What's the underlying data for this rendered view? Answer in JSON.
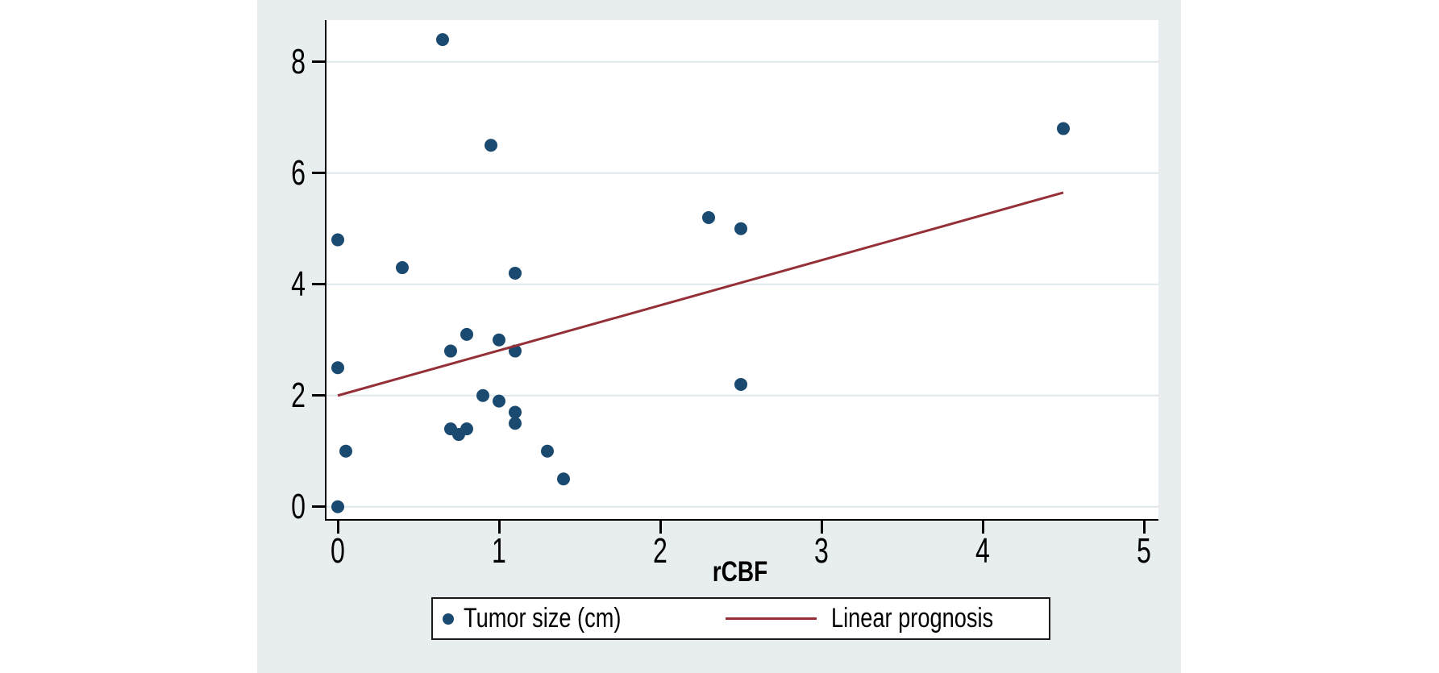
{
  "figure": {
    "background": "#e8eef0",
    "plot_background": "#ffffff",
    "grid_color": "#dfe9ec",
    "axis_color": "#000000",
    "legend_border_color": "#1a1a1a"
  },
  "legend": {
    "position": "bottom",
    "items": [
      {
        "label": "Tumor size (cm)",
        "marker": "dot",
        "color": "#1b4a71"
      },
      {
        "label": "Linear prognosis",
        "marker": "line",
        "color": "#953038"
      }
    ]
  },
  "chart_data": {
    "type": "scatter",
    "title": "",
    "xlabel": "rCBF",
    "ylabel": "",
    "xlim": [
      -0.08,
      5.09
    ],
    "ylim": [
      -0.25,
      8.75
    ],
    "x_ticks": [
      0,
      1,
      2,
      3,
      4,
      5
    ],
    "x_tick_labels": [
      "0",
      "1",
      "2",
      "3",
      "4",
      "5"
    ],
    "y_ticks": [
      0,
      2,
      4,
      6,
      8
    ],
    "y_tick_labels": [
      "0",
      "2",
      "4",
      "6",
      "8"
    ],
    "grid": "horizontal",
    "series": [
      {
        "name": "Tumor size (cm)",
        "type": "scatter",
        "color": "#1b4a71",
        "marker_radius_px": 8,
        "points": [
          [
            0,
            0
          ],
          [
            0,
            2.5
          ],
          [
            0,
            4.8
          ],
          [
            0.05,
            1.0
          ],
          [
            0.4,
            4.3
          ],
          [
            0.65,
            8.4
          ],
          [
            0.7,
            1.4
          ],
          [
            0.7,
            2.8
          ],
          [
            0.75,
            1.3
          ],
          [
            0.8,
            1.4
          ],
          [
            0.8,
            3.1
          ],
          [
            0.9,
            2.0
          ],
          [
            0.95,
            6.5
          ],
          [
            1.0,
            1.9
          ],
          [
            1.0,
            3.0
          ],
          [
            1.1,
            1.5
          ],
          [
            1.1,
            1.7
          ],
          [
            1.1,
            2.8
          ],
          [
            1.1,
            4.2
          ],
          [
            1.3,
            1.0
          ],
          [
            1.4,
            0.5
          ],
          [
            2.3,
            5.2
          ],
          [
            2.5,
            5.0
          ],
          [
            2.5,
            2.2
          ],
          [
            4.5,
            6.8
          ]
        ]
      },
      {
        "name": "Linear prognosis",
        "type": "line",
        "color": "#953038",
        "line": {
          "x0": 0,
          "y0": 2.0,
          "x1": 4.5,
          "y1": 5.65
        }
      }
    ]
  }
}
